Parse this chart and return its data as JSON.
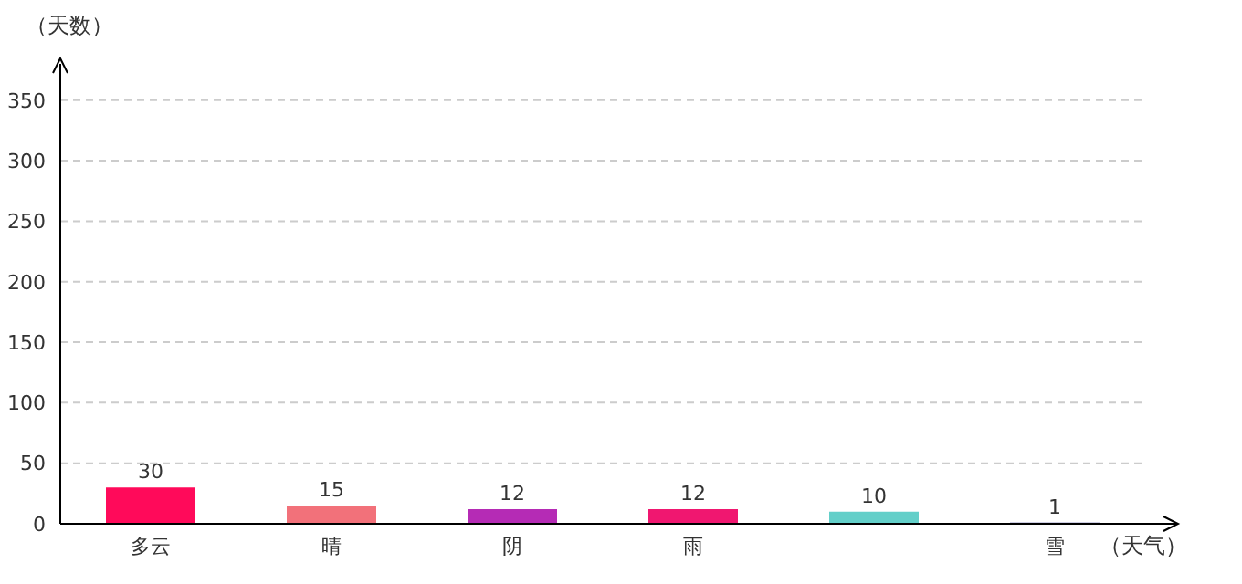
{
  "chart_data": {
    "type": "bar",
    "xlabel": "（天气）",
    "ylabel": "（天数）",
    "categories": [
      "多云",
      "晴",
      "阴",
      "雨",
      null,
      "雪"
    ],
    "values": [
      30,
      15,
      12,
      12,
      10,
      1
    ],
    "colors": [
      "#ff0a5a",
      "#f2717a",
      "#b52bb5",
      "#f01770",
      "#63cfc9",
      "#3b3b8f"
    ],
    "ylim": [
      0,
      380
    ],
    "yticks": [
      0,
      50,
      100,
      150,
      200,
      250,
      300,
      350
    ],
    "grid": "y",
    "data_labels": true
  }
}
